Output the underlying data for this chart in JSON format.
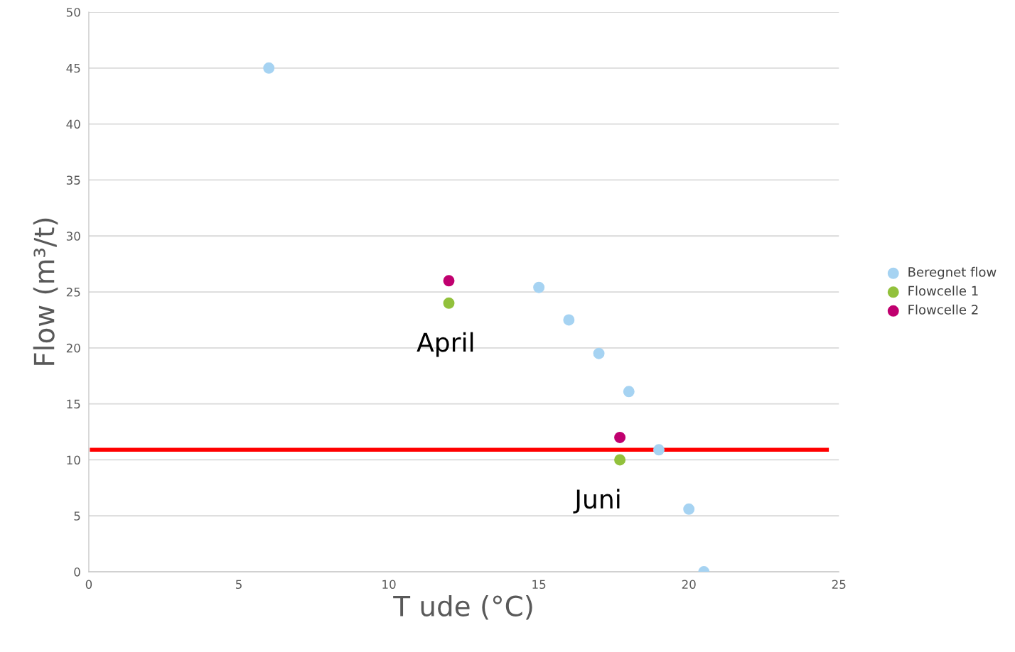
{
  "chart_data": {
    "type": "scatter",
    "xlabel": "T ude (°C)",
    "ylabel": "Flow (m³/t)",
    "xlim": [
      0,
      25
    ],
    "xticks": [
      0,
      5,
      10,
      15,
      20,
      25
    ],
    "ylim": [
      0,
      50
    ],
    "yticks": [
      0,
      5,
      10,
      15,
      20,
      25,
      30,
      35,
      40,
      45,
      50
    ],
    "grid": "y",
    "legend": "right",
    "marker": "circle",
    "series": [
      {
        "name": "Beregnet flow",
        "color": "#a6d3f2",
        "x": [
          6,
          15,
          16,
          17,
          18,
          19,
          20,
          20.5
        ],
        "values": [
          45,
          25.4,
          22.5,
          19.5,
          16.1,
          10.9,
          5.6,
          0
        ]
      },
      {
        "name": "Flowcelle 1",
        "color": "#92c13c",
        "x": [
          12,
          17.7
        ],
        "values": [
          24,
          10
        ]
      },
      {
        "name": "Flowcelle 2",
        "color": "#c0006f",
        "x": [
          12,
          17.7
        ],
        "values": [
          26,
          12
        ]
      },
      {
        "type": "line",
        "marker": "none",
        "color": "#ff0000",
        "x": [
          0.1,
          24.6
        ],
        "values": [
          10.9,
          10.9
        ]
      }
    ],
    "annotations": [
      "April",
      "Juni"
    ]
  }
}
